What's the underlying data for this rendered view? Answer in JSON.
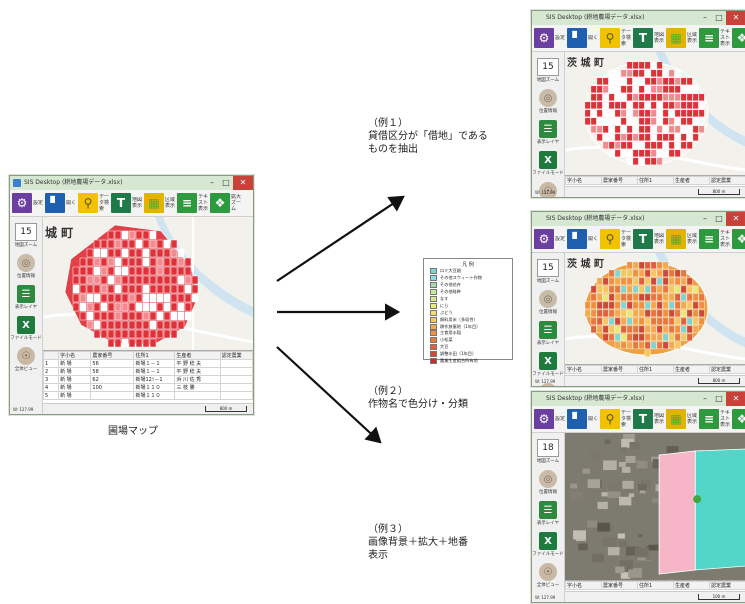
{
  "main_window": {
    "title": "SIS Desktop (耕地農場データ.xlsx)",
    "toolbar": [
      {
        "icon": "gear-icon",
        "label": "設定"
      },
      {
        "icon": "folder-icon",
        "label": "開く"
      },
      {
        "icon": "search-icon",
        "label": "データ検索"
      },
      {
        "icon": "map-icon",
        "label": "地図表示"
      },
      {
        "icon": "layer-icon",
        "label": "区域表示"
      },
      {
        "icon": "table-icon",
        "label": "テキスト表示"
      },
      {
        "icon": "expand-icon",
        "label": "拡大ズーム"
      }
    ],
    "sidebar": {
      "zoom": "15",
      "zoom_label": "地図ズーム",
      "items": [
        {
          "icon": "location-icon",
          "label": "位置情報"
        },
        {
          "icon": "layer-list-icon",
          "label": "表示レイヤ"
        },
        {
          "icon": "excel-icon",
          "label": "ファイルモード"
        },
        {
          "icon": "eye-icon",
          "label": "全体ビュー"
        }
      ]
    },
    "map_label": "城 町",
    "table": {
      "headers": [
        "",
        "字小名",
        "農家番号",
        "住所1",
        "生産者",
        "認定農業"
      ],
      "rows": [
        [
          "1",
          "新 場",
          "56",
          "新場１－１",
          "平 野 稔 夫",
          ""
        ],
        [
          "2",
          "新 場",
          "58",
          "新場１－１",
          "平 野 稔 夫",
          ""
        ],
        [
          "3",
          "新 場",
          "62",
          "新場12ｿ－1",
          "浜 川 佐 秀",
          ""
        ],
        [
          "4",
          "新 場",
          "100",
          "新場１１０",
          "三 枝 勝",
          ""
        ],
        [
          "5",
          "新 場",
          "",
          "新場１１０",
          "",
          ""
        ]
      ]
    },
    "coord": "W: 127.99",
    "scale": "800 m"
  },
  "thumbnails": [
    {
      "zoom": "15",
      "map_label": "茨 城 町",
      "map_type": "rental",
      "table_headers": [
        "字小名",
        "農家番号",
        "住所1",
        "生産者",
        "認定農業"
      ],
      "scale": "800 m",
      "coord": "W: 127.99"
    },
    {
      "zoom": "15",
      "map_label": "茨 城 町",
      "map_type": "crop",
      "table_headers": [
        "字小名",
        "農家番号",
        "住所1",
        "生産者",
        "認定農業"
      ],
      "scale": "800 m",
      "coord": "W: 127.99"
    },
    {
      "zoom": "18",
      "map_label": "",
      "map_type": "aerial",
      "table_headers": [
        "字小名",
        "農家番号",
        "住所1",
        "生産者",
        "認定農業"
      ],
      "scale": "100 m",
      "coord": "W: 127.99"
    }
  ],
  "legend": {
    "title": "凡 例",
    "items": [
      {
        "label": "ロミ大豆畑",
        "color": "#7fd4d4"
      },
      {
        "label": "その他スウィート作物",
        "color": "#8fd8e8"
      },
      {
        "label": "その他花卉",
        "color": "#a8d8b0"
      },
      {
        "label": "その他畦畔",
        "color": "#c8e8a0"
      },
      {
        "label": "なす",
        "color": "#d8e890"
      },
      {
        "label": "にら",
        "color": "#e8e878"
      },
      {
        "label": "ぶどう",
        "color": "#f0e070"
      },
      {
        "label": "飼料用米（多収性）",
        "color": "#f4c860"
      },
      {
        "label": "耕作放棄地（1年目）",
        "color": "#f4a850"
      },
      {
        "label": "主食用水稲",
        "color": "#f09040"
      },
      {
        "label": "小松菜",
        "color": "#e87840"
      },
      {
        "label": "大豆",
        "color": "#e06040"
      },
      {
        "label": "調整水田（1年目）",
        "color": "#d04838"
      },
      {
        "label": "農業生産組合所有地",
        "color": "#c03030"
      }
    ]
  },
  "captions": {
    "main": "圃場マップ",
    "ex1": [
      "（例１）",
      "貸借区分が「借地」である",
      "ものを抽出"
    ],
    "ex2": [
      "（例２）",
      "作物名で色分け・分類"
    ],
    "ex3": [
      "（例３）",
      "画像背景＋拡大＋地番",
      "表示"
    ]
  },
  "colors": {
    "arrow": "#111111",
    "rental_parcel": "#e03038",
    "map_base": "#f3f1ec",
    "water": "#cfe3f0",
    "road": "#ffffff",
    "titlebar": "#d6e8d2"
  }
}
